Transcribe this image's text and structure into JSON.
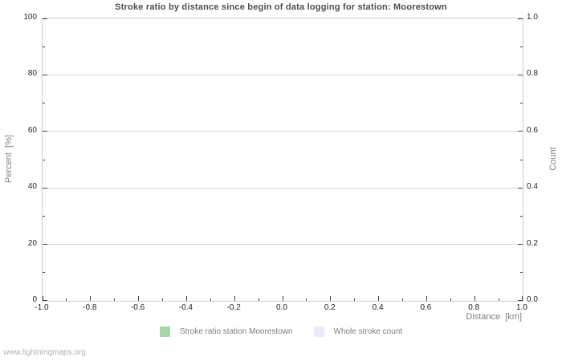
{
  "watermark": "www.lightningmaps.org",
  "chart_data": {
    "type": "line",
    "title": "Stroke ratio by distance since begin of data logging for station: Moorestown",
    "xlabel": "Distance  [km]",
    "ylabel_left": "Percent  [%]",
    "ylabel_right": "Count",
    "xlim": [
      -1.0,
      1.0
    ],
    "ylim_left": [
      0,
      100
    ],
    "ylim_right": [
      0.0,
      1.0
    ],
    "x_ticks": [
      "-1.0",
      "-0.8",
      "-0.6",
      "-0.4",
      "-0.2",
      "0.0",
      "0.2",
      "0.4",
      "0.6",
      "0.8",
      "1.0"
    ],
    "y_ticks_left": [
      "0",
      "20",
      "40",
      "60",
      "80",
      "100"
    ],
    "y_ticks_right": [
      "0.0",
      "0.2",
      "0.4",
      "0.6",
      "0.8",
      "1.0"
    ],
    "grid": "horizontal-only",
    "legend_position": "bottom-center",
    "series": [
      {
        "name": "Stroke ratio station Moorestown",
        "color": "#a7d7a7",
        "values": []
      },
      {
        "name": "Whole stroke count",
        "color": "#eaeaf8",
        "values": []
      }
    ],
    "colors": {
      "background": "#ffffff",
      "border": "#cccccc",
      "grid": "#d4d4d4",
      "tick": "#404040",
      "tick_label": "#1f1f1f",
      "title": "#4d4d4d",
      "axis_label": "#808080",
      "legend_text": "#7d7d7d",
      "watermark": "#b0b0b0"
    }
  }
}
